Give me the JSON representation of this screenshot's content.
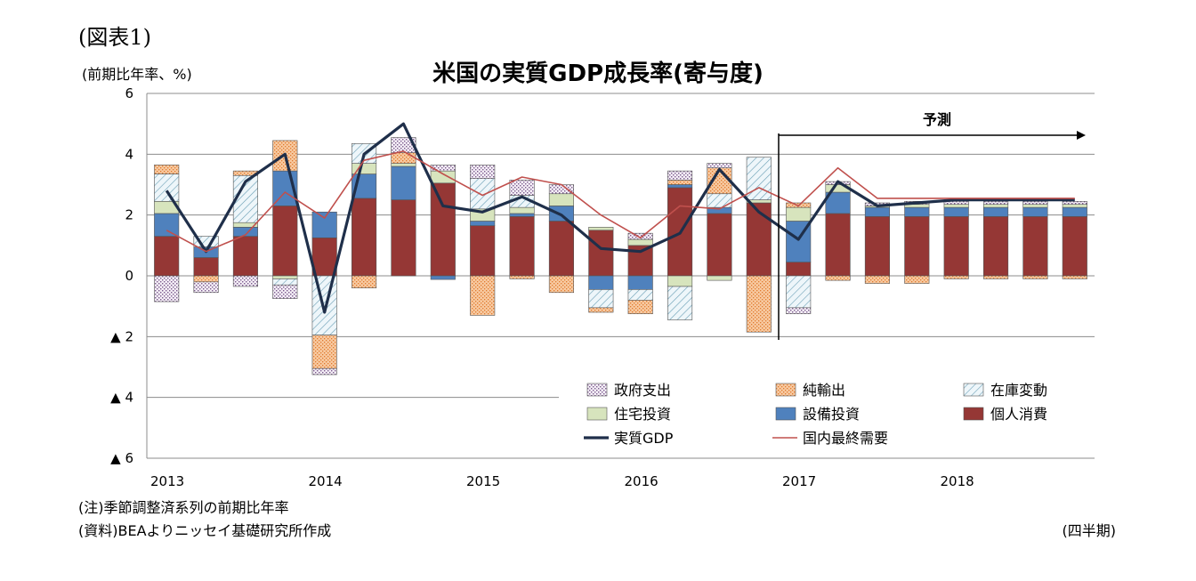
{
  "figure_label": "(図表1)",
  "unit_label": "(前期比年率、%)",
  "note": "(注)季節調整済系列の前期比年率",
  "source": "(資料)BEAよりニッセイ基礎研究所作成",
  "period_label": "(四半期)",
  "colors": {
    "gov": "#d8cce0",
    "netexp": "#f4b483",
    "inventory": "#dcebf2",
    "housing": "#d7e4bd",
    "capex": "#4f81bd",
    "consumption": "#953735",
    "gdp_line": "#1f2f4a",
    "domestic_line": "#c0504d"
  },
  "chart_data": {
    "type": "bar",
    "title": "米国の実質GDP成長率(寄与度)",
    "xlabel": "",
    "ylabel": "",
    "ylim": [
      -6,
      6
    ],
    "grid": true,
    "y_ticks": [
      {
        "value": 6,
        "label": "6"
      },
      {
        "value": 4,
        "label": "4"
      },
      {
        "value": 2,
        "label": "2"
      },
      {
        "value": 0,
        "label": "0"
      },
      {
        "value": -2,
        "label": "▲ 2"
      },
      {
        "value": -4,
        "label": "▲ 4"
      },
      {
        "value": -6,
        "label": "▲ 6"
      }
    ],
    "year_labels": [
      {
        "label": "2013",
        "at": 0
      },
      {
        "label": "2014",
        "at": 4
      },
      {
        "label": "2015",
        "at": 8
      },
      {
        "label": "2016",
        "at": 12
      },
      {
        "label": "2017",
        "at": 16
      },
      {
        "label": "2018",
        "at": 20
      }
    ],
    "categories": [
      "2013Q1",
      "2013Q2",
      "2013Q3",
      "2013Q4",
      "2014Q1",
      "2014Q2",
      "2014Q3",
      "2014Q4",
      "2015Q1",
      "2015Q2",
      "2015Q3",
      "2015Q4",
      "2016Q1",
      "2016Q2",
      "2016Q3",
      "2016Q4",
      "2017Q1",
      "2017Q2",
      "2017Q3",
      "2017Q4",
      "2018Q1",
      "2018Q2",
      "2018Q3",
      "2018Q4"
    ],
    "forecast": {
      "label": "予測",
      "start_index": 16
    },
    "series": [
      {
        "name": "個人消費",
        "key": "consumption",
        "kind": "bar",
        "values": [
          1.3,
          0.6,
          1.3,
          2.3,
          1.25,
          2.55,
          2.5,
          3.05,
          1.65,
          1.95,
          1.8,
          1.5,
          1.0,
          2.9,
          2.05,
          2.4,
          0.45,
          2.05,
          1.95,
          1.95,
          1.95,
          1.95,
          1.95,
          1.95
        ]
      },
      {
        "name": "設備投資",
        "key": "capex",
        "kind": "bar",
        "values": [
          0.75,
          0.35,
          0.3,
          1.15,
          0.85,
          0.8,
          1.1,
          -0.12,
          0.15,
          0.1,
          0.5,
          -0.45,
          -0.45,
          0.1,
          0.2,
          0.0,
          1.35,
          0.7,
          0.3,
          0.3,
          0.3,
          0.3,
          0.3,
          0.3
        ]
      },
      {
        "name": "住宅投資",
        "key": "housing",
        "kind": "bar",
        "values": [
          0.4,
          0.0,
          0.15,
          -0.1,
          0.0,
          0.35,
          0.1,
          0.4,
          0.4,
          0.2,
          0.4,
          0.1,
          0.2,
          -0.35,
          -0.15,
          0.1,
          0.45,
          0.25,
          0.05,
          0.1,
          0.1,
          0.1,
          0.1,
          0.1
        ]
      },
      {
        "name": "在庫変動",
        "key": "inventory",
        "kind": "bar",
        "values": [
          0.9,
          0.35,
          1.55,
          -0.2,
          -1.95,
          0.65,
          0.0,
          0.0,
          1.0,
          0.4,
          0.0,
          -0.6,
          -0.35,
          -1.1,
          0.45,
          1.4,
          -1.05,
          0.0,
          0.0,
          0.0,
          0.0,
          0.0,
          0.0,
          0.0
        ]
      },
      {
        "name": "純輸出",
        "key": "netexp",
        "kind": "bar",
        "values": [
          0.3,
          -0.2,
          0.15,
          1.0,
          -1.1,
          -0.4,
          0.35,
          0.0,
          -1.3,
          -0.1,
          -0.55,
          -0.15,
          -0.45,
          0.15,
          0.85,
          -1.85,
          0.15,
          -0.15,
          -0.25,
          -0.25,
          -0.1,
          -0.1,
          -0.1,
          -0.1
        ]
      },
      {
        "name": "政府支出",
        "key": "gov",
        "kind": "bar",
        "values": [
          -0.85,
          -0.35,
          -0.35,
          -0.45,
          -0.2,
          0.0,
          0.5,
          0.2,
          0.45,
          0.5,
          0.3,
          0.0,
          0.2,
          0.3,
          0.15,
          0.0,
          -0.2,
          0.1,
          0.1,
          0.1,
          0.1,
          0.1,
          0.1,
          0.1
        ]
      },
      {
        "name": "実質GDP",
        "key": "gdp",
        "kind": "line",
        "values": [
          2.8,
          0.8,
          3.1,
          4.0,
          -1.2,
          4.0,
          5.0,
          2.3,
          2.1,
          2.6,
          2.0,
          0.9,
          0.8,
          1.4,
          3.5,
          2.1,
          1.2,
          3.1,
          2.3,
          2.4,
          2.5,
          2.5,
          2.5,
          2.5
        ]
      },
      {
        "name": "国内最終需要",
        "key": "domestic",
        "kind": "line",
        "values": [
          1.5,
          0.8,
          1.35,
          2.75,
          1.9,
          3.8,
          4.1,
          3.35,
          2.65,
          3.25,
          3.0,
          2.0,
          1.25,
          2.3,
          2.2,
          2.9,
          2.3,
          3.55,
          2.55,
          2.55,
          2.55,
          2.55,
          2.55,
          2.55
        ]
      }
    ],
    "legend": {
      "position": "bottom-right",
      "items": [
        "政府支出",
        "純輸出",
        "在庫変動",
        "住宅投資",
        "設備投資",
        "個人消費",
        "実質GDP",
        "国内最終需要"
      ]
    }
  }
}
